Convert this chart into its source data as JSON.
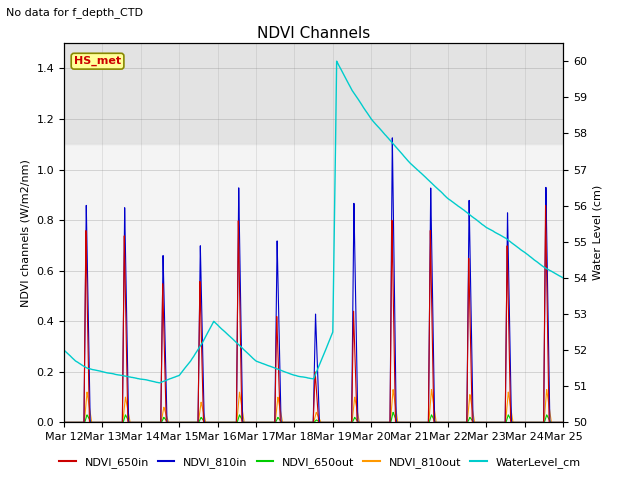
{
  "title": "NDVI Channels",
  "subtitle": "No data for f_depth_CTD",
  "ylabel_left": "NDVI channels (W/m2/nm)",
  "ylabel_right": "Water Level (cm)",
  "xlim_days": [
    0,
    13
  ],
  "ylim_left": [
    0,
    1.5
  ],
  "ylim_right": [
    50.0,
    60.5
  ],
  "xtick_labels": [
    "Mar 12",
    "Mar 13",
    "Mar 14",
    "Mar 15",
    "Mar 16",
    "Mar 17",
    "Mar 18",
    "Mar 19",
    "Mar 20",
    "Mar 21",
    "Mar 22",
    "Mar 23",
    "Mar 24",
    "Mar 25"
  ],
  "xtick_positions": [
    0,
    1,
    2,
    3,
    4,
    5,
    6,
    7,
    8,
    9,
    10,
    11,
    12,
    13
  ],
  "yticks_left": [
    0.0,
    0.2,
    0.4,
    0.6,
    0.8,
    1.0,
    1.2,
    1.4
  ],
  "yticks_right": [
    50.0,
    51.0,
    52.0,
    53.0,
    54.0,
    55.0,
    56.0,
    57.0,
    58.0,
    59.0,
    60.0
  ],
  "color_650in": "#cc0000",
  "color_810in": "#0000cc",
  "color_650out": "#00cc00",
  "color_810out": "#ff9900",
  "color_water": "#00cccc",
  "shaded_region_lo": 1.1,
  "shaded_region_hi": 1.5,
  "legend_items": [
    "NDVI_650in",
    "NDVI_810in",
    "NDVI_650out",
    "NDVI_810out",
    "WaterLevel_cm"
  ],
  "annotation_box": "HS_met",
  "annotation_box_color": "#ffff99",
  "annotation_box_edgecolor": "#888800",
  "spike_times_810in": [
    0.58,
    1.58,
    2.58,
    3.55,
    4.55,
    5.55,
    6.55,
    7.55,
    8.55,
    9.55,
    10.55,
    11.55,
    12.55
  ],
  "spike_heights_810in": [
    0.86,
    0.85,
    0.66,
    0.7,
    0.93,
    0.72,
    0.43,
    0.87,
    1.13,
    0.93,
    0.88,
    0.83,
    0.93
  ],
  "spike_times_650in": [
    0.57,
    1.57,
    2.57,
    3.54,
    4.54,
    5.54,
    6.54,
    7.54,
    8.54,
    9.54,
    10.54,
    11.54,
    12.54
  ],
  "spike_heights_650in": [
    0.76,
    0.74,
    0.55,
    0.56,
    0.8,
    0.42,
    0.2,
    0.44,
    0.8,
    0.76,
    0.65,
    0.7,
    0.86
  ],
  "spike_times_810out": [
    0.6,
    1.6,
    2.6,
    3.57,
    4.57,
    5.57,
    6.57,
    7.57,
    8.57,
    9.57,
    10.57,
    11.57,
    12.57
  ],
  "spike_heights_810out": [
    0.12,
    0.1,
    0.06,
    0.08,
    0.12,
    0.1,
    0.04,
    0.1,
    0.13,
    0.13,
    0.11,
    0.12,
    0.13
  ],
  "spike_times_650out": [
    0.6,
    1.6,
    2.6,
    3.57,
    4.57,
    5.57,
    6.57,
    7.57,
    8.57,
    9.57,
    10.57,
    11.57,
    12.57
  ],
  "spike_heights_650out": [
    0.03,
    0.03,
    0.02,
    0.02,
    0.03,
    0.02,
    0.01,
    0.02,
    0.04,
    0.03,
    0.02,
    0.03,
    0.03
  ],
  "water_level_nodes_t": [
    0.0,
    0.3,
    0.6,
    1.0,
    1.5,
    2.0,
    2.5,
    3.0,
    3.3,
    3.6,
    3.9,
    4.2,
    4.5,
    5.0,
    5.5,
    6.0,
    6.5,
    7.0,
    7.05,
    7.1,
    7.5,
    8.0,
    8.5,
    9.0,
    9.5,
    10.0,
    10.5,
    11.0,
    11.5,
    12.0,
    12.5,
    13.0
  ],
  "water_level_nodes_v": [
    52.0,
    51.7,
    51.5,
    51.4,
    51.3,
    51.2,
    51.1,
    51.3,
    51.7,
    52.2,
    52.8,
    52.5,
    52.2,
    51.7,
    51.5,
    51.3,
    51.2,
    52.5,
    56.0,
    60.0,
    59.2,
    58.4,
    57.8,
    57.2,
    56.7,
    56.2,
    55.8,
    55.4,
    55.1,
    54.7,
    54.3,
    54.0
  ]
}
